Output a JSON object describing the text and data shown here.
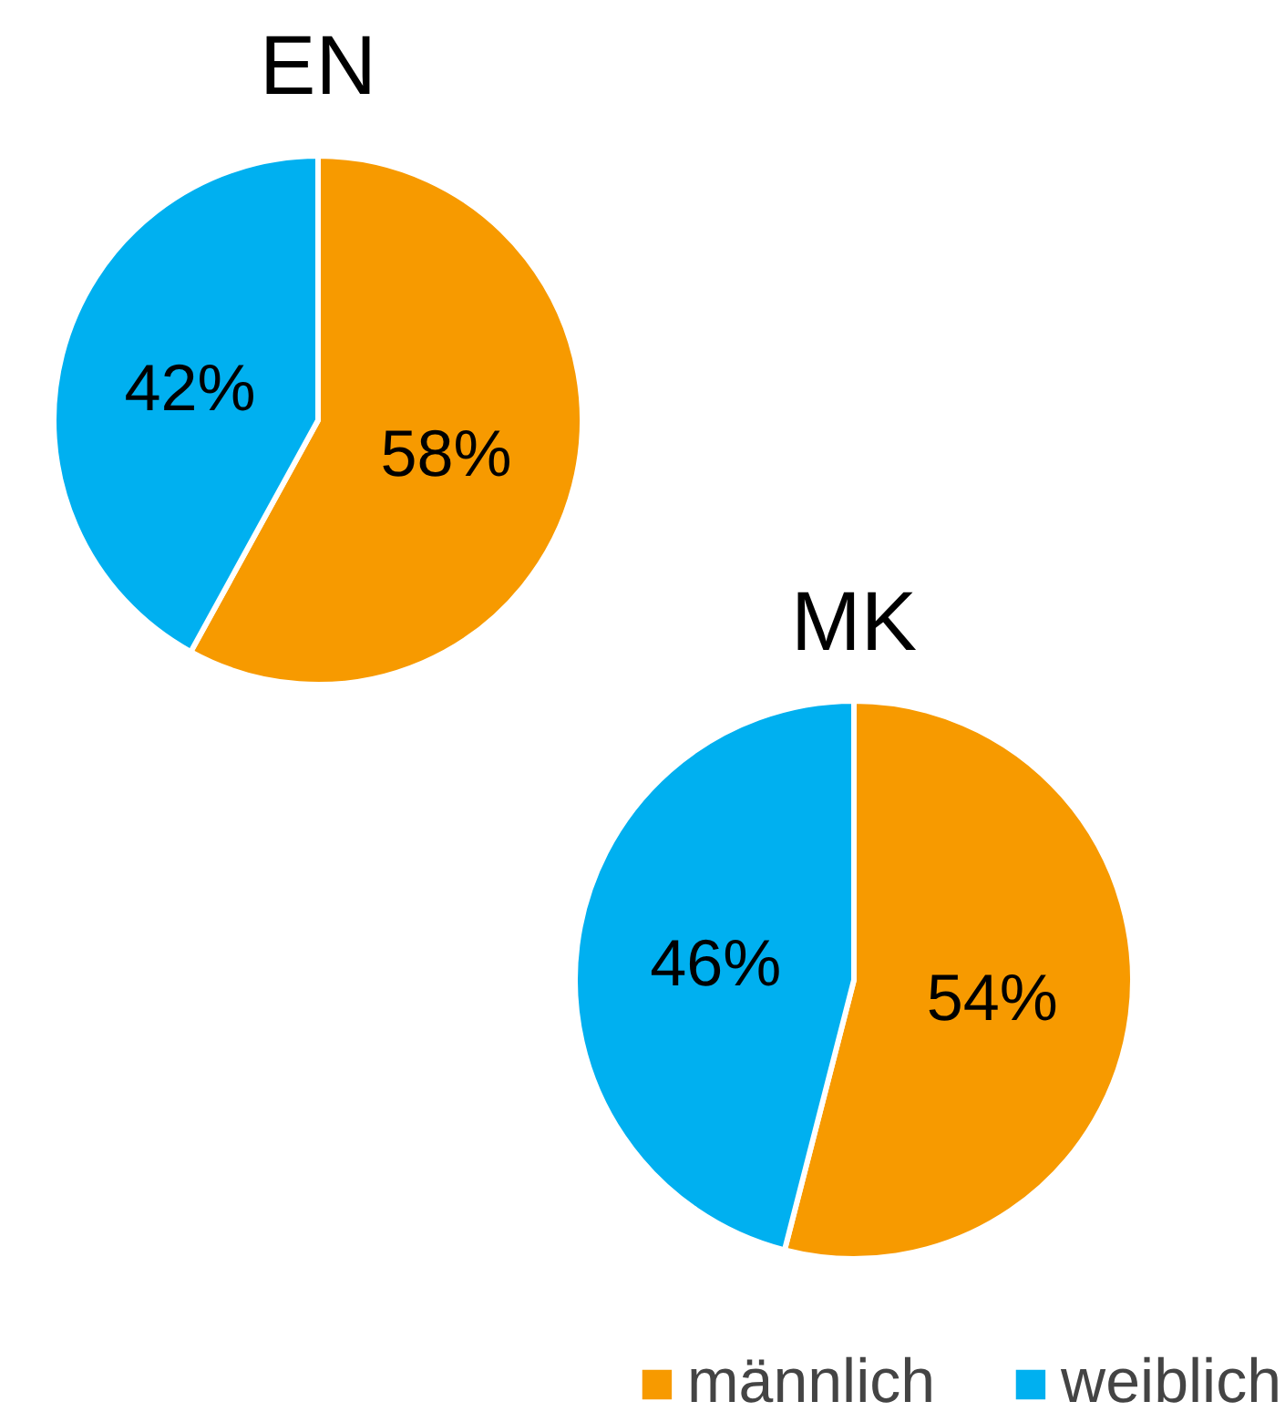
{
  "chart_data": [
    {
      "type": "pie",
      "title": "EN",
      "categories": [
        "männlich",
        "weiblich"
      ],
      "values": [
        58,
        42
      ],
      "colors": [
        "#f79a00",
        "#00b0f0"
      ],
      "value_labels": [
        "58%",
        "42%"
      ],
      "legend": "bottom right"
    },
    {
      "type": "pie",
      "title": "MK",
      "categories": [
        null,
        null
      ],
      "values": [
        54,
        46
      ],
      "colors": [
        "#f79a00",
        "#00b0f0"
      ],
      "value_labels": [
        "54%",
        "46%"
      ]
    }
  ]
}
